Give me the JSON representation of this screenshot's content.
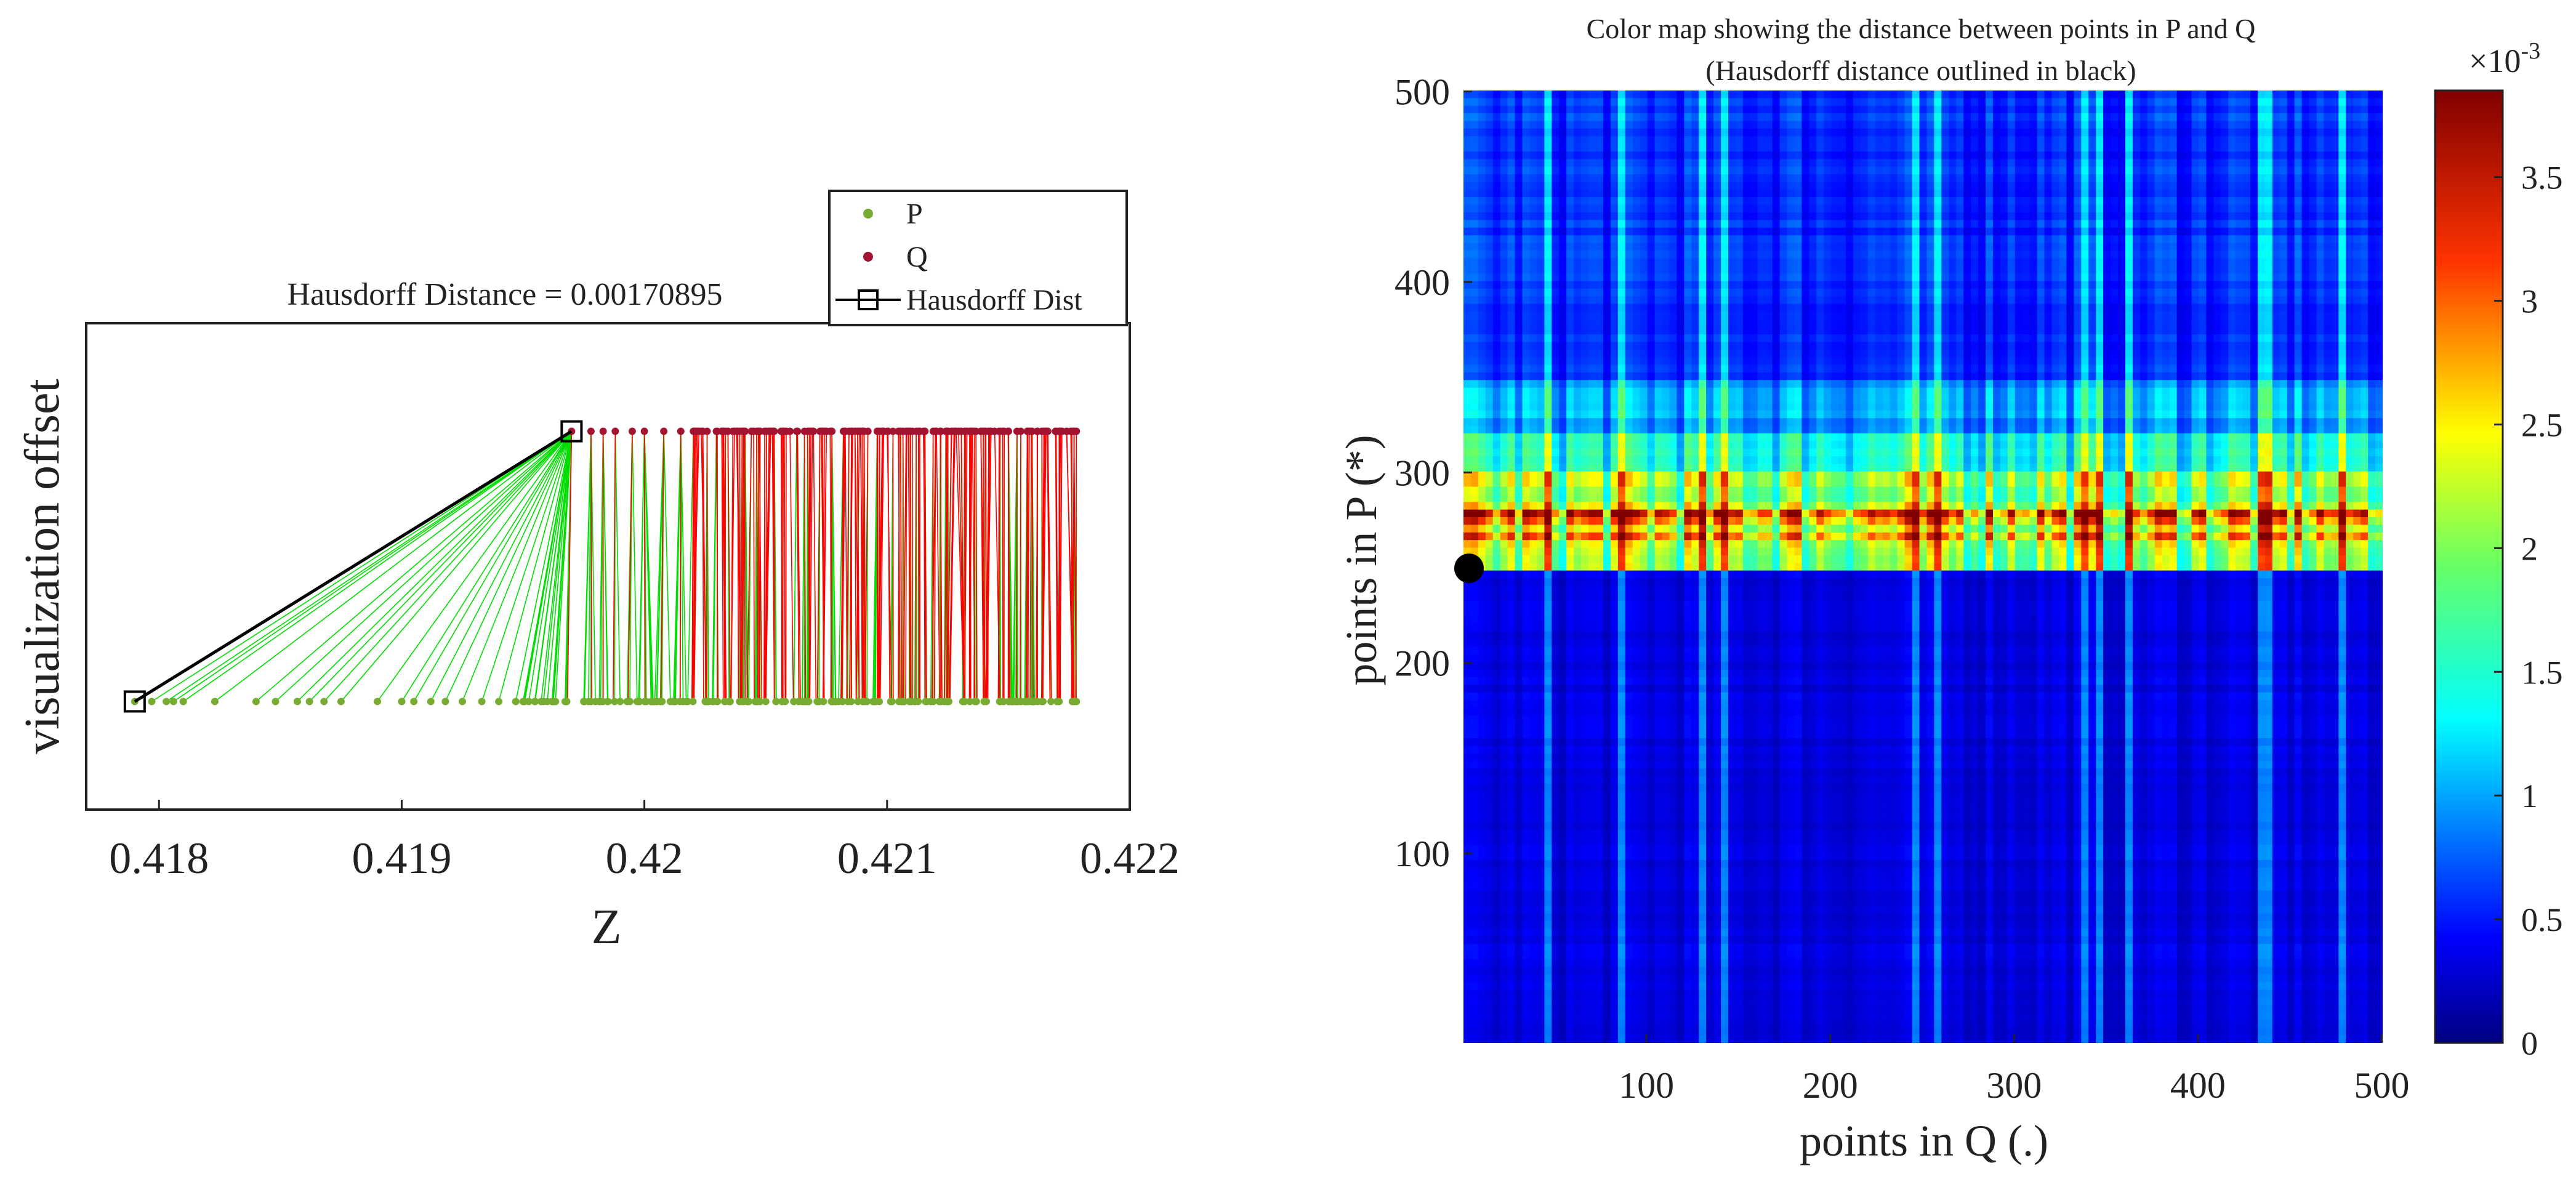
{
  "chart_data": [
    {
      "type": "scatter",
      "title": "Hausdorff Distance = 0.00170895",
      "xlabel": "Z",
      "ylabel": "visualization offset",
      "xlim": [
        0.4177,
        0.422
      ],
      "ylim": [
        -0.2,
        0.7
      ],
      "x_ticks": [
        0.418,
        0.419,
        0.42,
        0.421,
        0.422
      ],
      "x_tick_labels": [
        "0.418",
        "0.419",
        "0.42",
        "0.421",
        "0.422"
      ],
      "grid": false,
      "legend": {
        "location": "top-right",
        "entries": [
          {
            "label": "P",
            "marker": "dot",
            "color": "#77ac30"
          },
          {
            "label": "Q",
            "marker": "dot",
            "color": "#a2142f"
          },
          {
            "label": "Hausdorff Dist",
            "marker": "square-line",
            "color": "#000000"
          }
        ]
      },
      "series": [
        {
          "name": "P",
          "y": 0,
          "color": "#77ac30",
          "x": [
            0.4179,
            0.41797,
            0.41803,
            0.41806,
            0.4181,
            0.41823,
            0.4184,
            0.41848,
            0.41857,
            0.41862,
            0.41868,
            0.41875,
            0.4189,
            0.419,
            0.41905,
            0.41912,
            0.41918,
            0.41925,
            0.41933,
            0.4194,
            0.41947,
            0.41955,
            0.4196,
            0.41968,
            0.41975,
            0.41982,
            0.4199,
            0.41997,
            0.42005,
            0.42012,
            0.4202,
            0.42028,
            0.42035,
            0.42043,
            0.4205,
            0.42058,
            0.42065,
            0.42072,
            0.4208,
            0.42088,
            0.42095,
            0.42102,
            0.4211,
            0.42118,
            0.42125,
            0.42132,
            0.4214,
            0.42148,
            0.42155,
            0.42162,
            0.4217,
            0.42178
          ],
          "fill_range": [
            0.4195,
            0.42178
          ]
        },
        {
          "name": "Q",
          "y": 0.5,
          "color": "#a2142f",
          "x": [
            0.4197,
            0.41978,
            0.41983,
            0.41988,
            0.41995,
            0.42,
            0.42008,
            0.42015,
            0.42022,
            0.4203,
            0.42038,
            0.42045,
            0.42052,
            0.4206,
            0.42068,
            0.42075,
            0.42082,
            0.4209,
            0.42098,
            0.42105,
            0.42112,
            0.4212,
            0.42128,
            0.42135,
            0.42142,
            0.4215,
            0.42158,
            0.42165,
            0.42172,
            0.42178
          ],
          "fill_range": [
            0.4202,
            0.42178
          ]
        }
      ],
      "hausdorff_segment": {
        "from": [
          0.4179,
          0
        ],
        "to": [
          0.4197,
          0.5
        ],
        "color": "#000000"
      },
      "matching_lines": [
        {
          "from_set": "P",
          "to_set": "Q",
          "color": "#00dd00",
          "description_ids": "green lines from P points to nearest Q"
        },
        {
          "from_set": "Q",
          "to_set": "P",
          "color": "#ff0000",
          "description_ids": "red lines from Q points to nearest P"
        }
      ]
    },
    {
      "type": "heatmap",
      "title": "Color map showing the distance between points in P and Q",
      "subtitle": "(Hausdorff distance outlined in black)",
      "xlabel": "points in Q (.)",
      "ylabel": "points in P (*)",
      "xlim": [
        1,
        500
      ],
      "ylim": [
        1,
        500
      ],
      "x_ticks": [
        100,
        200,
        300,
        400,
        500
      ],
      "x_tick_labels": [
        "100",
        "200",
        "300",
        "400",
        "500"
      ],
      "y_ticks": [
        100,
        200,
        300,
        400,
        500
      ],
      "y_tick_labels": [
        "100",
        "200",
        "300",
        "400",
        "500"
      ],
      "colorbar": {
        "limits": [
          0,
          0.00385
        ],
        "exponent_label": "×10",
        "exponent_power": "-3",
        "ticks": [
          0,
          0.5,
          1,
          1.5,
          2,
          2.5,
          3,
          3.5
        ],
        "tick_labels": [
          "0",
          "0.5",
          "1",
          "1.5",
          "2",
          "2.5",
          "3",
          "3.5"
        ],
        "colormap": "jet"
      },
      "bands_p_index": [
        {
          "from": 1,
          "to": 250,
          "level": 0.1
        },
        {
          "from": 250,
          "to": 265,
          "level": 0.6
        },
        {
          "from": 265,
          "to": 275,
          "level": 0.75
        },
        {
          "from": 275,
          "to": 280,
          "level": 0.95
        },
        {
          "from": 280,
          "to": 300,
          "level": 0.6
        },
        {
          "from": 300,
          "to": 320,
          "level": 0.45
        },
        {
          "from": 320,
          "to": 350,
          "level": 0.3
        },
        {
          "from": 350,
          "to": 500,
          "level": 0.18
        }
      ],
      "hausdorff_marker": {
        "q_index": 2,
        "p_index": 250,
        "color": "#000000"
      }
    }
  ]
}
